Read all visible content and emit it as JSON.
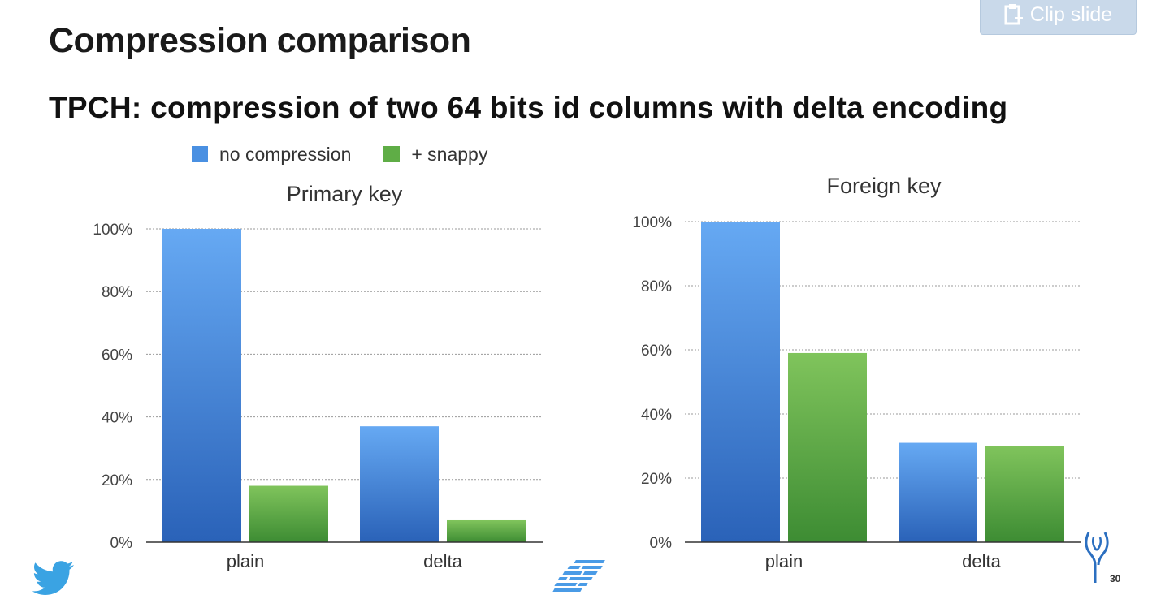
{
  "title": "Compression comparison",
  "subtitle": "TPCH: compression of two 64 bits id columns with delta encoding",
  "clip_button_label": "Clip slide",
  "slide_number": "30",
  "colors": {
    "no_compression": "#4a90e2",
    "snappy": "#5fad46"
  },
  "legend": [
    {
      "label": "no compression",
      "color": "#4a90e2"
    },
    {
      "label": "+ snappy",
      "color": "#5fad46"
    }
  ],
  "chart_data": [
    {
      "type": "bar",
      "title": "Primary key",
      "categories": [
        "plain",
        "delta"
      ],
      "series": [
        {
          "name": "no compression",
          "values": [
            100,
            37
          ]
        },
        {
          "name": "+ snappy",
          "values": [
            18,
            7
          ]
        }
      ],
      "yticks": [
        "0%",
        "20%",
        "40%",
        "60%",
        "80%",
        "100%"
      ],
      "ylim": [
        0,
        100
      ],
      "grid": true
    },
    {
      "type": "bar",
      "title": "Foreign key",
      "categories": [
        "plain",
        "delta"
      ],
      "series": [
        {
          "name": "no compression",
          "values": [
            100,
            31
          ]
        },
        {
          "name": "+ snappy",
          "values": [
            59,
            30
          ]
        }
      ],
      "yticks": [
        "0%",
        "20%",
        "40%",
        "60%",
        "80%",
        "100%"
      ],
      "ylim": [
        0,
        100
      ],
      "grid": true
    }
  ]
}
